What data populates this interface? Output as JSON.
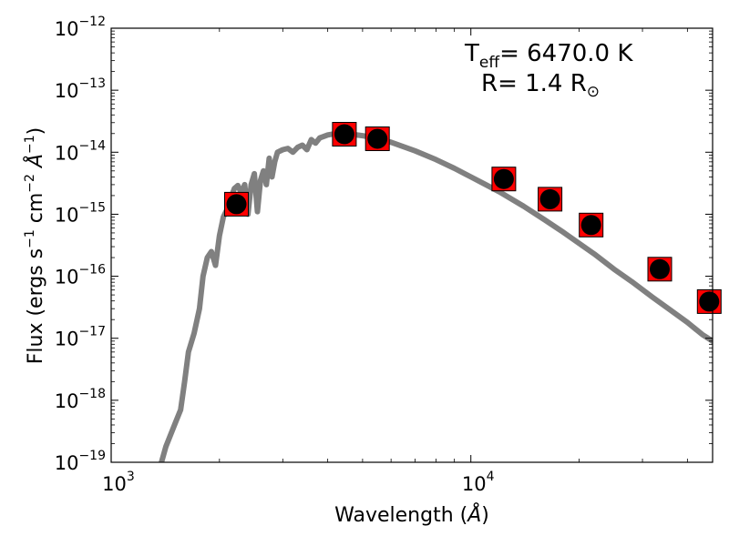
{
  "chart_data": {
    "type": "scatter",
    "title": "",
    "xlabel": "Wavelength (Å)",
    "ylabel": "Flux (ergs s⁻¹ cm⁻² Å⁻¹)",
    "xscale": "log",
    "yscale": "log",
    "xlim": [
      1000,
      47000
    ],
    "ylim": [
      1e-19,
      1e-12
    ],
    "grid": false,
    "legend": "none",
    "x_ticks": [
      {
        "value": 1000,
        "base": "10",
        "exp": "3"
      },
      {
        "value": 10000,
        "base": "10",
        "exp": "4"
      }
    ],
    "y_ticks": [
      {
        "value": 1e-19,
        "base": "10",
        "exp": "-19"
      },
      {
        "value": 1e-18,
        "base": "10",
        "exp": "-18"
      },
      {
        "value": 1e-17,
        "base": "10",
        "exp": "-17"
      },
      {
        "value": 1e-16,
        "base": "10",
        "exp": "-16"
      },
      {
        "value": 1e-15,
        "base": "10",
        "exp": "-15"
      },
      {
        "value": 1e-14,
        "base": "10",
        "exp": "-14"
      },
      {
        "value": 1e-13,
        "base": "10",
        "exp": "-13"
      },
      {
        "value": 1e-12,
        "base": "10",
        "exp": "-12"
      }
    ],
    "annotations": {
      "teff_prefix": "T",
      "teff_sub": "eff",
      "teff_value": "= 6470.0 K",
      "radius_prefix": "R= 1.4 R",
      "radius_symbol": "⊙"
    },
    "series": [
      {
        "type": "line",
        "role": "model-spectrum",
        "color": "#808080",
        "x": [
          1380,
          1420,
          1500,
          1560,
          1600,
          1640,
          1700,
          1760,
          1800,
          1850,
          1900,
          1950,
          2000,
          2050,
          2100,
          2150,
          2200,
          2250,
          2300,
          2350,
          2400,
          2450,
          2500,
          2550,
          2600,
          2650,
          2700,
          2750,
          2800,
          2850,
          2900,
          3000,
          3100,
          3200,
          3300,
          3400,
          3500,
          3600,
          3700,
          3800,
          3900,
          4000,
          4200,
          4500,
          5000,
          5500,
          6000,
          7000,
          8000,
          9000,
          10000,
          11000,
          12000,
          14000,
          16000,
          18000,
          20000,
          22000,
          25000,
          28000,
          32000,
          36000,
          40000,
          44000,
          47000
        ],
        "y": [
          1e-19,
          1.8e-19,
          4e-19,
          7e-19,
          2e-18,
          6e-18,
          1.2e-17,
          3e-17,
          1e-16,
          2e-16,
          2.5e-16,
          1.5e-16,
          4.5e-16,
          9e-16,
          1.2e-15,
          1.8e-15,
          2.6e-15,
          2.9e-15,
          2.2e-15,
          3e-15,
          1e-15,
          3e-15,
          4.5e-15,
          1.1e-15,
          3.5e-15,
          5e-15,
          3e-15,
          8e-15,
          4e-15,
          7e-15,
          1e-14,
          1.1e-14,
          1.15e-14,
          1e-14,
          1.2e-14,
          1.3e-14,
          1.1e-14,
          1.6e-14,
          1.4e-14,
          1.7e-14,
          1.8e-14,
          1.9e-14,
          2e-14,
          2e-14,
          1.85e-14,
          1.65e-14,
          1.45e-14,
          1.05e-14,
          7.6e-15,
          5.5e-15,
          4e-15,
          3e-15,
          2.3e-15,
          1.35e-15,
          8.2e-16,
          5.2e-16,
          3.4e-16,
          2.3e-16,
          1.3e-16,
          8.2e-17,
          4.6e-17,
          2.8e-17,
          1.8e-17,
          1.15e-17,
          9e-18
        ]
      },
      {
        "type": "scatter",
        "role": "model-photometry",
        "marker": "square",
        "color": "#ff0000",
        "x": [
          2230,
          4450,
          5500,
          12350,
          16600,
          21600,
          33500,
          46000
        ],
        "y": [
          1.45e-15,
          1.95e-14,
          1.65e-14,
          3.7e-15,
          1.75e-15,
          6.7e-16,
          1.3e-16,
          3.9e-17
        ]
      },
      {
        "type": "scatter",
        "role": "observed-photometry",
        "marker": "circle",
        "color": "#000000",
        "x": [
          2230,
          4450,
          5500,
          12350,
          16600,
          21600,
          33500,
          46000
        ],
        "y": [
          1.45e-15,
          1.95e-14,
          1.65e-14,
          3.7e-15,
          1.75e-15,
          6.7e-16,
          1.3e-16,
          3.9e-17
        ]
      }
    ]
  }
}
